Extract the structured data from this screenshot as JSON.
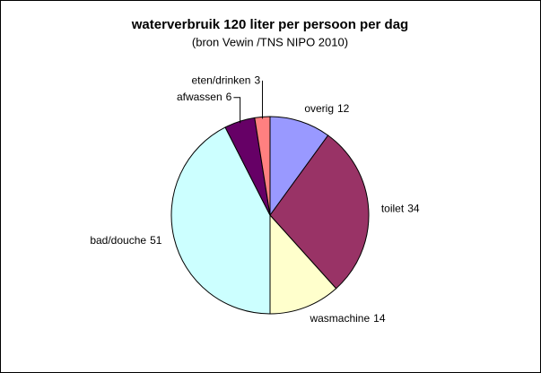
{
  "chart_data": {
    "type": "pie",
    "title": "waterverbruik 120 liter per persoon per dag",
    "subtitle": "(bron Vewin /TNS NIPO 2010)",
    "categories": [
      "overig",
      "toilet",
      "wasmachine",
      "bad/douche",
      "afwassen",
      "eten/drinken"
    ],
    "values": [
      12,
      34,
      14,
      51,
      6,
      3
    ],
    "colors": [
      "#9999ff",
      "#993366",
      "#ffffcc",
      "#ccffff",
      "#660066",
      "#ff8080"
    ]
  }
}
